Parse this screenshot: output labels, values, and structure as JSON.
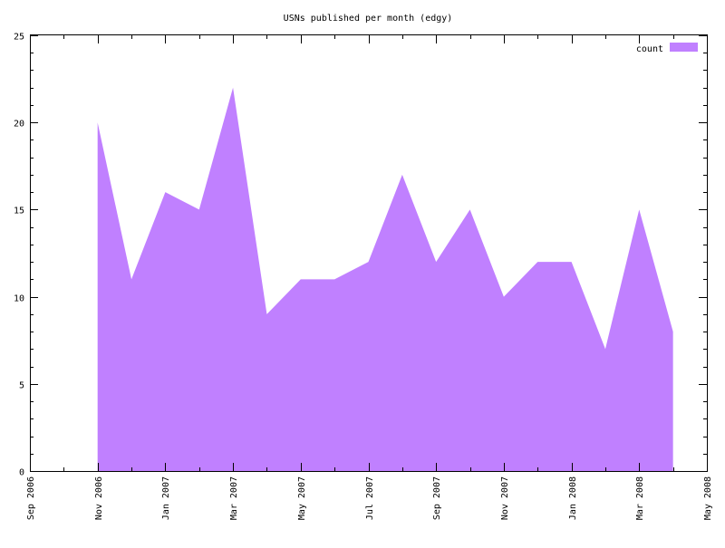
{
  "chart_data": {
    "type": "area",
    "title": "USNs published per month (edgy)",
    "xlabel": "",
    "ylabel": "",
    "x_axis": {
      "kind": "date",
      "range": [
        "2006-09",
        "2008-05"
      ],
      "tick_labels": [
        "Sep 2006",
        "Nov 2006",
        "Jan 2007",
        "Mar 2007",
        "May 2007",
        "Jul 2007",
        "Sep 2007",
        "Nov 2007",
        "Jan 2008",
        "Mar 2008",
        "May 2008"
      ]
    },
    "y_axis": {
      "range": [
        0,
        25
      ],
      "tick_labels": [
        "0",
        "5",
        "10",
        "15",
        "20",
        "25"
      ]
    },
    "grid": false,
    "legend": {
      "position": "top-right"
    },
    "series": [
      {
        "name": "count",
        "color": "#c080ff",
        "points": [
          {
            "x": "2006-11",
            "y": 20
          },
          {
            "x": "2006-12",
            "y": 11
          },
          {
            "x": "2007-01",
            "y": 16
          },
          {
            "x": "2007-02",
            "y": 15
          },
          {
            "x": "2007-03",
            "y": 22
          },
          {
            "x": "2007-04",
            "y": 9
          },
          {
            "x": "2007-05",
            "y": 11
          },
          {
            "x": "2007-06",
            "y": 11
          },
          {
            "x": "2007-07",
            "y": 12
          },
          {
            "x": "2007-08",
            "y": 17
          },
          {
            "x": "2007-09",
            "y": 12
          },
          {
            "x": "2007-10",
            "y": 15
          },
          {
            "x": "2007-11",
            "y": 10
          },
          {
            "x": "2007-12",
            "y": 12
          },
          {
            "x": "2008-01",
            "y": 12
          },
          {
            "x": "2008-02",
            "y": 7
          },
          {
            "x": "2008-03",
            "y": 15
          },
          {
            "x": "2008-04",
            "y": 8
          }
        ]
      }
    ]
  }
}
